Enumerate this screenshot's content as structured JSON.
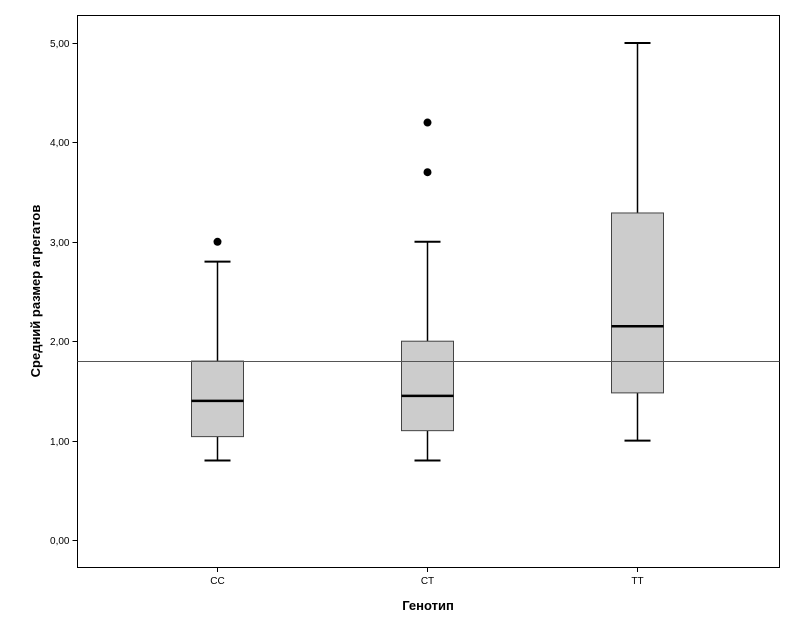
{
  "chart_data": {
    "type": "boxplot",
    "xlabel": "Генотип",
    "ylabel": "Средний размер агрегатов",
    "ylim": [
      -0.3,
      5.3
    ],
    "yticks": [
      0,
      1,
      2,
      3,
      4,
      5
    ],
    "ytick_labels": [
      "0,00",
      "1,00",
      "2,00",
      "3,00",
      "4,00",
      "5,00"
    ],
    "categories": [
      "CC",
      "CT",
      "TT"
    ],
    "boxes": [
      {
        "category": "CC",
        "whisker_low": 0.8,
        "q1": 1.04,
        "median": 1.4,
        "q3": 1.8,
        "whisker_high": 2.8,
        "outliers": [
          3.0
        ]
      },
      {
        "category": "CT",
        "whisker_low": 0.8,
        "q1": 1.1,
        "median": 1.45,
        "q3": 2.0,
        "whisker_high": 3.0,
        "outliers": [
          3.7,
          4.2
        ]
      },
      {
        "category": "TT",
        "whisker_low": 1.0,
        "q1": 1.48,
        "median": 2.15,
        "q3": 3.29,
        "whisker_high": 5.0,
        "outliers": []
      }
    ],
    "reference_line": 1.8,
    "grid": false,
    "box_fill": "#cccccc"
  }
}
